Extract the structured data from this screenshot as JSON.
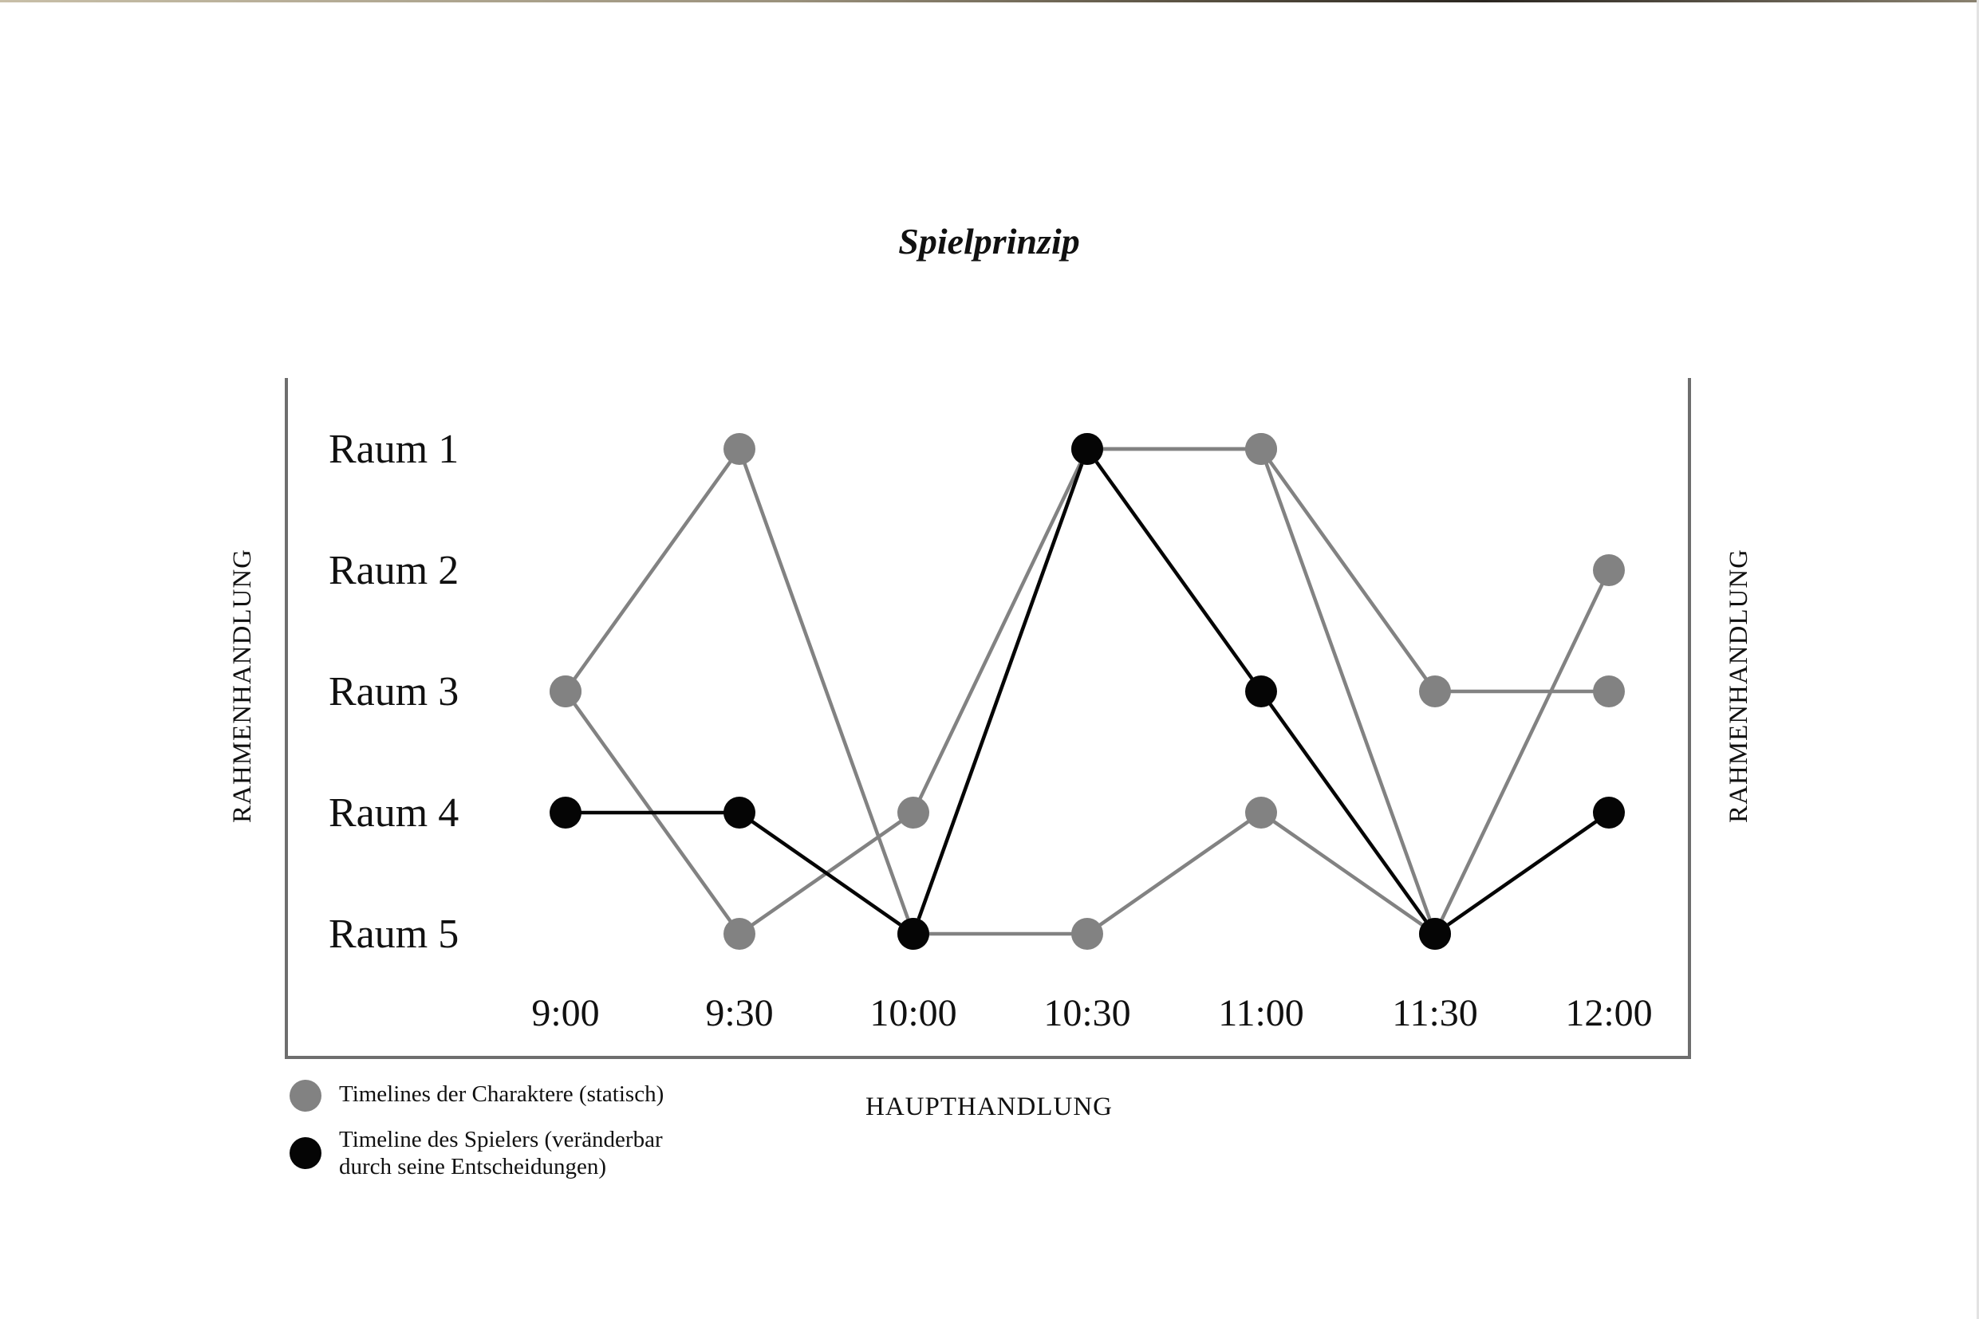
{
  "chart_data": {
    "type": "line",
    "title": "Spielprinzip",
    "categories": [
      "9:00",
      "9:30",
      "10:00",
      "10:30",
      "11:00",
      "11:30",
      "12:00"
    ],
    "rows": [
      "Raum 1",
      "Raum 2",
      "Raum 3",
      "Raum 4",
      "Raum 5"
    ],
    "xlabel": "HAUPTHANDLUNG",
    "ylabel_left": "RAHMENHANDLUNG",
    "ylabel_right": "RAHMENHANDLUNG",
    "grid": false,
    "legend_position": "bottom-left",
    "series": [
      {
        "style": "character",
        "values": [
          3,
          1,
          5,
          1,
          1,
          3,
          3
        ]
      },
      {
        "style": "character",
        "values": [
          3,
          5,
          4,
          1,
          1,
          5,
          2
        ]
      },
      {
        "style": "character",
        "values": [
          null,
          null,
          5,
          5,
          4,
          5,
          null
        ]
      },
      {
        "style": "player",
        "values": [
          4,
          4,
          5,
          1,
          3,
          5,
          4
        ]
      }
    ],
    "legend": [
      {
        "style": "character",
        "label": "Timelines der Charaktere (statisch)"
      },
      {
        "style": "player",
        "label": "Timeline des Spielers (veränderbar durch seine Entscheidungen)"
      }
    ]
  },
  "colors": {
    "character": "#828282",
    "player": "#050505",
    "frame": "#6e6e6e",
    "text": "#111111"
  }
}
